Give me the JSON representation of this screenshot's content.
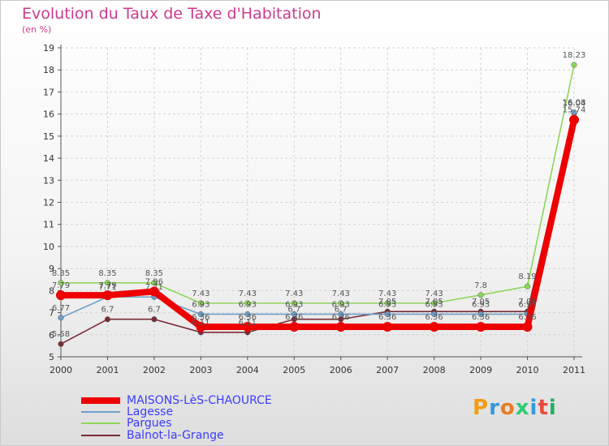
{
  "header": {
    "title": "Evolution du Taux de Taxe d'Habitation",
    "unit": "(en %)"
  },
  "logo": {
    "text": "Proxiti",
    "colors": [
      "#f39c12",
      "#3498db",
      "#e67e22",
      "#2ecc71",
      "#3498db",
      "#e74c3c",
      "#27ae60"
    ]
  },
  "chart_data": {
    "type": "line",
    "title": "Evolution du Taux de Taxe d'Habitation",
    "ylabel": "(en %)",
    "xlabel": "",
    "x": [
      "2000",
      "2001",
      "2002",
      "2003",
      "2004",
      "2005",
      "2006",
      "2007",
      "2008",
      "2009",
      "2010",
      "2011"
    ],
    "ylim": [
      5,
      19
    ],
    "yticks": [
      "5",
      "6",
      "7",
      "8",
      "9",
      "10",
      "11",
      "12",
      "13",
      "14",
      "15",
      "16",
      "17",
      "18",
      "19"
    ],
    "grid": true,
    "legend_position": "bottom-left",
    "series": [
      {
        "name": "Balnot-la-Grange",
        "color": "#7a2b35",
        "values": [
          5.58,
          6.7,
          6.7,
          6.11,
          6.11,
          6.7,
          6.7,
          7.05,
          7.05,
          7.05,
          7.05,
          16.04
        ],
        "labels": [
          "5.58",
          "6.7",
          "6.7",
          "6.11",
          "6.11",
          "6.7",
          "6.7",
          "7.05",
          "7.05",
          "7.05",
          "7.05",
          "16.04"
        ]
      },
      {
        "name": "Lagesse",
        "color": "#6e9fca",
        "values": [
          6.77,
          7.71,
          7.71,
          6.93,
          6.93,
          6.93,
          6.93,
          6.93,
          6.93,
          6.93,
          6.93,
          16.08
        ],
        "labels": [
          "6.77",
          "7.71",
          "7.71",
          "6.93",
          "6.93",
          "6.93",
          "6.93",
          "6.93",
          "6.93",
          "6.93",
          "6.93",
          "16.08"
        ]
      },
      {
        "name": "Pargues",
        "color": "#8ed65a",
        "values": [
          8.35,
          8.35,
          8.35,
          7.43,
          7.43,
          7.43,
          7.43,
          7.43,
          7.43,
          7.8,
          8.19,
          18.23
        ],
        "labels": [
          "8.35",
          "8.35",
          "8.35",
          "7.43",
          "7.43",
          "7.43",
          "7.43",
          "7.43",
          "7.43",
          "7.8",
          "8.19",
          "18.23"
        ]
      },
      {
        "name": "MAISONS-LèS-CHAOURCE",
        "color": "#ee0000",
        "values": [
          7.79,
          7.79,
          7.96,
          6.36,
          6.36,
          6.36,
          6.36,
          6.36,
          6.36,
          6.36,
          6.36,
          15.74
        ],
        "labels": [
          "7.79",
          "7.79",
          "7.96",
          "6.36",
          "6.36",
          "6.36",
          "6.36",
          "6.36",
          "6.36",
          "6.36",
          "6.36",
          "15.74"
        ]
      }
    ]
  },
  "legend": [
    {
      "name": "MAISONS-LèS-CHAOURCE",
      "color": "#ee0000",
      "thick": true
    },
    {
      "name": "Lagesse",
      "color": "#6e9fca",
      "thick": false
    },
    {
      "name": "Pargues",
      "color": "#8ed65a",
      "thick": false
    },
    {
      "name": "Balnot-la-Grange",
      "color": "#7a2b35",
      "thick": false
    }
  ]
}
